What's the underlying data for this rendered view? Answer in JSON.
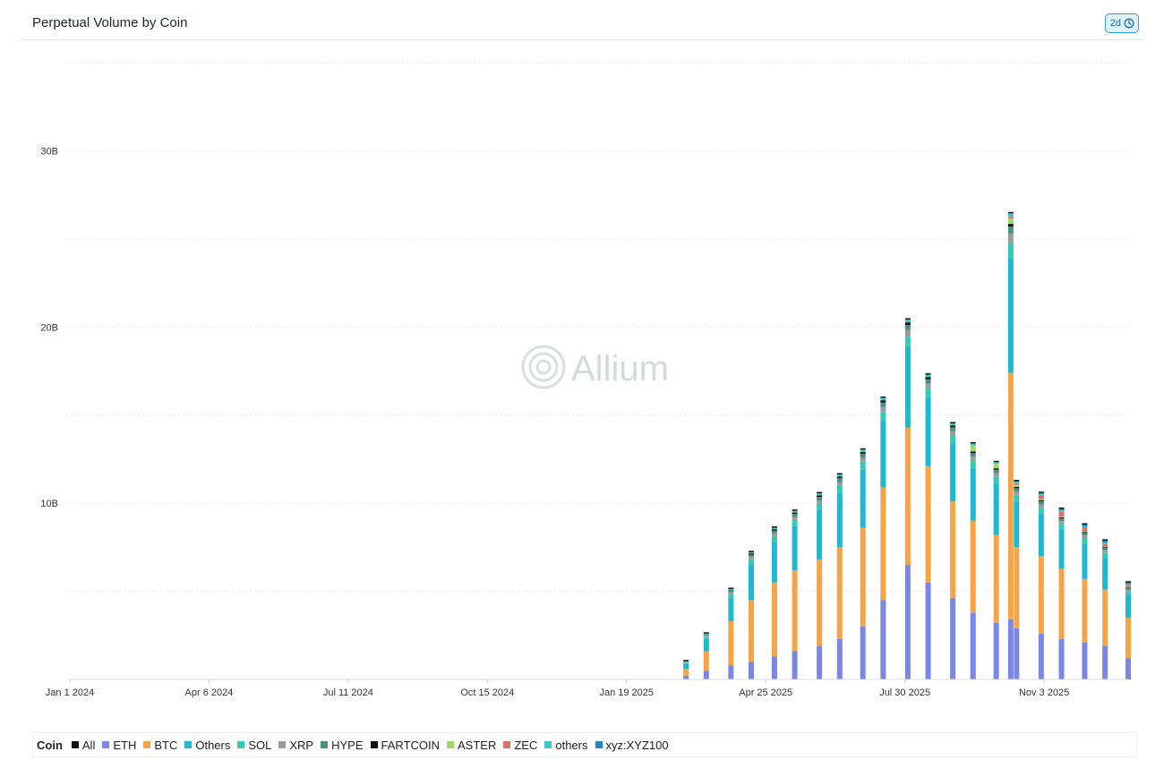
{
  "header": {
    "title": "Perpetual Volume by Coin",
    "interval_label": "2d",
    "interval_icon": "clock-icon"
  },
  "watermark": {
    "text": "Allium",
    "logo_icon": "allium-logo-icon"
  },
  "legend": {
    "title": "Coin",
    "items": [
      {
        "label": "All",
        "color": "#111111"
      },
      {
        "label": "ETH",
        "color": "#7b86e6"
      },
      {
        "label": "BTC",
        "color": "#f5a447"
      },
      {
        "label": "Others",
        "color": "#1eb8d0"
      },
      {
        "label": "SOL",
        "color": "#35c9b8"
      },
      {
        "label": "XRP",
        "color": "#9b9b9b"
      },
      {
        "label": "HYPE",
        "color": "#4f8f82"
      },
      {
        "label": "FARTCOIN",
        "color": "#111111"
      },
      {
        "label": "ASTER",
        "color": "#9dd86a"
      },
      {
        "label": "ZEC",
        "color": "#d9726a"
      },
      {
        "label": "others",
        "color": "#3cc7c4"
      },
      {
        "label": "xyz:XYZ100",
        "color": "#1b87c9"
      }
    ]
  },
  "chart_data": {
    "type": "bar",
    "stacked": true,
    "title": "Perpetual Volume by Coin",
    "xlabel": "",
    "ylabel": "",
    "ylim": [
      0,
      35000000000
    ],
    "y_ticks": [
      {
        "value": 10000000000,
        "label": "10B"
      },
      {
        "value": 20000000000,
        "label": "20B"
      },
      {
        "value": 30000000000,
        "label": "30B"
      }
    ],
    "x_ticks": [
      "Jan 1 2024",
      "Apr 6 2024",
      "Jul 11 2024",
      "Oct 15 2024",
      "Jan 19 2025",
      "Apr 25 2025",
      "Jul 30 2025",
      "Nov 3 2025"
    ],
    "x_range": [
      "2024-01-01",
      "2025-12-31"
    ],
    "grid": true,
    "legend_position": "bottom",
    "series_order": [
      "ETH",
      "BTC",
      "Others",
      "SOL",
      "XRP",
      "HYPE",
      "FARTCOIN",
      "ASTER",
      "ZEC",
      "others",
      "xyz:XYZ100"
    ],
    "x": [
      "2025-03-01",
      "2025-03-15",
      "2025-04-01",
      "2025-04-15",
      "2025-05-01",
      "2025-05-15",
      "2025-06-01",
      "2025-06-15",
      "2025-07-01",
      "2025-07-15",
      "2025-08-01",
      "2025-08-15",
      "2025-09-01",
      "2025-09-15",
      "2025-10-01",
      "2025-10-11",
      "2025-10-15",
      "2025-11-01",
      "2025-11-15",
      "2025-12-01",
      "2025-12-15",
      "2025-12-31"
    ],
    "series": [
      {
        "name": "ETH",
        "values": [
          200000000.0,
          500000000.0,
          800000000.0,
          1000000000.0,
          1300000000.0,
          1600000000.0,
          1900000000.0,
          2300000000.0,
          3000000000.0,
          4500000000.0,
          6500000000.0,
          5500000000.0,
          4600000000.0,
          3800000000.0,
          3200000000.0,
          3400000000.0,
          2900000000.0,
          2600000000.0,
          2300000000.0,
          2100000000.0,
          1900000000.0,
          1200000000.0
        ]
      },
      {
        "name": "BTC",
        "values": [
          400000000.0,
          1100000000.0,
          2500000000.0,
          3500000000.0,
          4200000000.0,
          4600000000.0,
          4900000000.0,
          5200000000.0,
          5600000000.0,
          6400000000.0,
          7800000000.0,
          6600000000.0,
          5500000000.0,
          5200000000.0,
          5000000000.0,
          14000000000.0,
          4600000000.0,
          4400000000.0,
          4000000000.0,
          3600000000.0,
          3200000000.0,
          2300000000.0
        ]
      },
      {
        "name": "Others",
        "values": [
          300000000.0,
          700000000.0,
          1300000000.0,
          2000000000.0,
          2300000000.0,
          2500000000.0,
          2800000000.0,
          3100000000.0,
          3300000000.0,
          3800000000.0,
          4600000000.0,
          3900000000.0,
          3300000000.0,
          3000000000.0,
          2900000000.0,
          6500000000.0,
          2600000000.0,
          2400000000.0,
          2200000000.0,
          2000000000.0,
          1800000000.0,
          1300000000.0
        ]
      },
      {
        "name": "SOL",
        "values": [
          50000000.0,
          120000000.0,
          220000000.0,
          300000000.0,
          330000000.0,
          350000000.0,
          380000000.0,
          400000000.0,
          450000000.0,
          500000000.0,
          600000000.0,
          500000000.0,
          450000000.0,
          420000000.0,
          400000000.0,
          900000000.0,
          380000000.0,
          350000000.0,
          320000000.0,
          300000000.0,
          280000000.0,
          200000000.0
        ]
      },
      {
        "name": "XRP",
        "values": [
          30000000.0,
          80000000.0,
          120000000.0,
          150000000.0,
          160000000.0,
          170000000.0,
          180000000.0,
          200000000.0,
          220000000.0,
          260000000.0,
          320000000.0,
          280000000.0,
          240000000.0,
          220000000.0,
          200000000.0,
          500000000.0,
          190000000.0,
          180000000.0,
          170000000.0,
          160000000.0,
          150000000.0,
          100000000.0
        ]
      },
      {
        "name": "HYPE",
        "values": [
          30000000.0,
          60000000.0,
          100000000.0,
          130000000.0,
          150000000.0,
          170000000.0,
          200000000.0,
          220000000.0,
          240000000.0,
          260000000.0,
          300000000.0,
          260000000.0,
          220000000.0,
          200000000.0,
          200000000.0,
          400000000.0,
          180000000.0,
          170000000.0,
          160000000.0,
          150000000.0,
          140000000.0,
          100000000.0
        ]
      },
      {
        "name": "FARTCOIN",
        "values": [
          0,
          0,
          30000000.0,
          60000000.0,
          80000000.0,
          80000000.0,
          90000000.0,
          90000000.0,
          100000000.0,
          120000000.0,
          140000000.0,
          120000000.0,
          100000000.0,
          90000000.0,
          80000000.0,
          150000000.0,
          70000000.0,
          60000000.0,
          50000000.0,
          50000000.0,
          40000000.0,
          30000000.0
        ]
      },
      {
        "name": "ASTER",
        "values": [
          0,
          0,
          0,
          0,
          0,
          0,
          0,
          0,
          0,
          0,
          0,
          0,
          0,
          350000000.0,
          250000000.0,
          300000000.0,
          120000000.0,
          60000000.0,
          40000000.0,
          30000000.0,
          30000000.0,
          20000000.0
        ]
      },
      {
        "name": "ZEC",
        "values": [
          0,
          0,
          0,
          0,
          0,
          0,
          0,
          0,
          0,
          0,
          0,
          0,
          0,
          0,
          0,
          100000000.0,
          100000000.0,
          220000000.0,
          280000000.0,
          220000000.0,
          150000000.0,
          100000000.0
        ]
      },
      {
        "name": "others",
        "values": [
          20000000.0,
          40000000.0,
          60000000.0,
          80000000.0,
          90000000.0,
          100000000.0,
          110000000.0,
          120000000.0,
          130000000.0,
          140000000.0,
          160000000.0,
          140000000.0,
          120000000.0,
          110000000.0,
          100000000.0,
          200000000.0,
          90000000.0,
          90000000.0,
          80000000.0,
          80000000.0,
          70000000.0,
          50000000.0
        ]
      },
      {
        "name": "xyz:XYZ100",
        "values": [
          0,
          0,
          0,
          0,
          0,
          0,
          0,
          0,
          0,
          0,
          0,
          0,
          0,
          0,
          0,
          0,
          20000000.0,
          50000000.0,
          80000000.0,
          100000000.0,
          120000000.0,
          100000000.0
        ]
      }
    ]
  }
}
